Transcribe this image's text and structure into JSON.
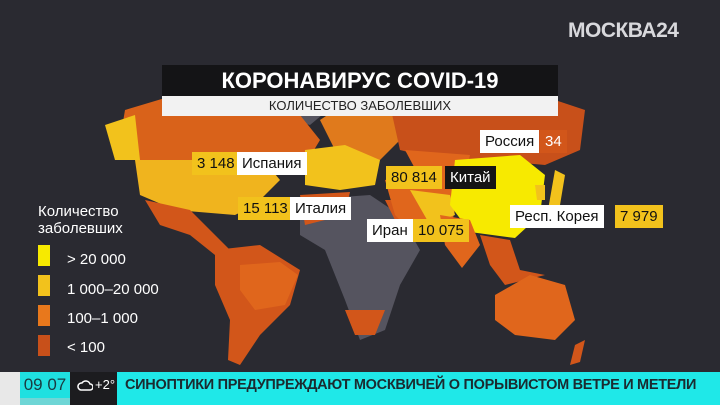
{
  "channel_logo": "МОСКВА24",
  "header": {
    "title": "КОРОНАВИРУС COVID-19",
    "subtitle": "КОЛИЧЕСТВО ЗАБОЛЕВШИХ"
  },
  "colors": {
    "gt20000": "#f7ea00",
    "r1000_20000": "#f2c21c",
    "r100_1000": "#e8781c",
    "lt100": "#c8501a",
    "no_data": "#55545f",
    "background": "#2a2a31"
  },
  "countries": [
    {
      "name": "Россия",
      "value": "34",
      "category": "< 100"
    },
    {
      "name": "Испания",
      "value": "3 148",
      "category": "1 000–20 000"
    },
    {
      "name": "Италия",
      "value": "15 113",
      "category": "1 000–20 000"
    },
    {
      "name": "Китай",
      "value": "80 814",
      "category": "> 20 000"
    },
    {
      "name": "Иран",
      "value": "10 075",
      "category": "1 000–20 000"
    },
    {
      "name": "Респ. Корея",
      "value": "7 979",
      "category": "1 000–20 000"
    }
  ],
  "legend": {
    "title_line1": "Количество",
    "title_line2": "заболевших",
    "items": [
      {
        "label": "> 20 000",
        "color": "#f7ea00"
      },
      {
        "label": "1 000–20 000",
        "color": "#f2c21c"
      },
      {
        "label": "100–1 000",
        "color": "#e8781c"
      },
      {
        "label": "< 100",
        "color": "#c8501a"
      }
    ]
  },
  "ticker": {
    "time": "09 07",
    "weather_icon": "cloud-icon",
    "temperature": "+2°",
    "headline": "СИНОПТИКИ ПРЕДУПРЕЖДАЮТ МОСКВИЧЕЙ О ПОРЫВИСТОМ ВЕТРЕ И МЕТЕЛИ"
  }
}
